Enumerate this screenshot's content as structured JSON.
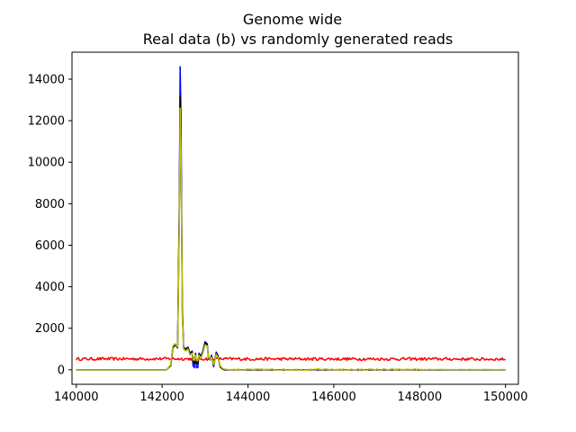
{
  "chart_data": {
    "type": "line",
    "title_line1": "Genome wide",
    "title_line2": "Real data (b) vs randomly generated reads",
    "xlabel": "",
    "ylabel": "",
    "xlim": [
      139900,
      150300
    ],
    "ylim": [
      -700,
      15300
    ],
    "grid": false,
    "x_ticks": [
      140000,
      142000,
      144000,
      146000,
      148000,
      150000
    ],
    "y_ticks": [
      0,
      2000,
      4000,
      6000,
      8000,
      10000,
      12000,
      14000
    ],
    "series": [
      {
        "color": "#ff0000",
        "style": "noisy-flat",
        "x": [
          140000,
          142000,
          144000,
          146000,
          148000,
          150000
        ],
        "y": [
          520,
          530,
          520,
          520,
          520,
          510
        ]
      },
      {
        "color": "#0000ff",
        "x": [
          140000,
          142100,
          142200,
          142250,
          142300,
          142330,
          142360,
          142400,
          142420,
          142440,
          142470,
          142500,
          142550,
          142600,
          142650,
          142700,
          142720,
          142750,
          142780,
          142800,
          142830,
          142860,
          142900,
          142950,
          143000,
          143050,
          143080,
          143120,
          143150,
          143200,
          143230,
          143260,
          143300,
          143350,
          143400,
          143450,
          143600,
          150000
        ],
        "y": [
          0,
          0,
          200,
          1100,
          1250,
          1200,
          1100,
          8000,
          14600,
          12000,
          3000,
          1100,
          1000,
          1100,
          800,
          900,
          200,
          100,
          800,
          100,
          100,
          800,
          650,
          900,
          1350,
          1250,
          600,
          500,
          700,
          150,
          500,
          850,
          700,
          150,
          50,
          0,
          0,
          0
        ]
      },
      {
        "color": "#000000",
        "x": [
          140000,
          142100,
          142200,
          142250,
          142300,
          142330,
          142360,
          142400,
          142420,
          142440,
          142470,
          142500,
          142550,
          142600,
          142650,
          142700,
          142720,
          142750,
          142780,
          142800,
          142830,
          142860,
          142900,
          142950,
          143000,
          143050,
          143080,
          143120,
          143150,
          143200,
          143230,
          143260,
          143300,
          143350,
          143400,
          143450,
          143600,
          150000
        ],
        "y": [
          0,
          0,
          200,
          1050,
          1200,
          1150,
          1050,
          7500,
          13200,
          11000,
          2800,
          1050,
          950,
          1050,
          750,
          850,
          400,
          300,
          750,
          300,
          300,
          750,
          600,
          850,
          1300,
          1200,
          550,
          480,
          650,
          200,
          480,
          800,
          650,
          150,
          50,
          0,
          0,
          0
        ]
      },
      {
        "color": "#bfbf00",
        "style": "noisy-tail",
        "x": [
          140000,
          142100,
          142200,
          142250,
          142300,
          142330,
          142360,
          142400,
          142420,
          142440,
          142470,
          142500,
          142550,
          142600,
          142650,
          142700,
          142720,
          142750,
          142780,
          142800,
          142830,
          142860,
          142900,
          142950,
          143000,
          143050,
          143080,
          143120,
          143150,
          143200,
          143230,
          143260,
          143300,
          143350,
          143400,
          143450,
          143600,
          150000
        ],
        "y": [
          0,
          0,
          250,
          1150,
          1250,
          1200,
          1100,
          7000,
          12600,
          10500,
          2600,
          1000,
          900,
          1000,
          700,
          800,
          500,
          450,
          700,
          450,
          450,
          700,
          550,
          800,
          1200,
          1150,
          600,
          500,
          600,
          250,
          450,
          750,
          600,
          200,
          80,
          30,
          0,
          0
        ]
      }
    ]
  }
}
